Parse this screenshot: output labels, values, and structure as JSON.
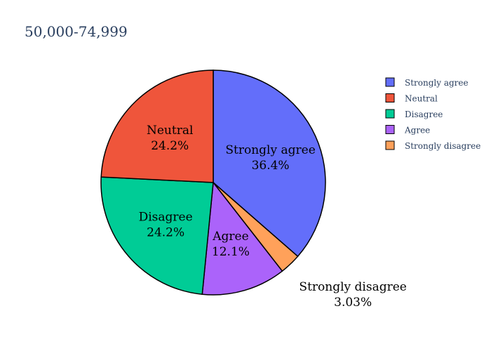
{
  "chart_data": {
    "type": "pie",
    "title": "50,000-74,999",
    "legend_position": "top-right",
    "slices": [
      {
        "label": "Strongly agree",
        "value": 36.4,
        "display": "36.4%",
        "color": "#636efa"
      },
      {
        "label": "Strongly disagree",
        "value": 3.03,
        "display": "3.03%",
        "color": "#ffa15a"
      },
      {
        "label": "Agree",
        "value": 12.1,
        "display": "12.1%",
        "color": "#ab63fa"
      },
      {
        "label": "Disagree",
        "value": 24.2,
        "display": "24.2%",
        "color": "#00cc96"
      },
      {
        "label": "Neutral",
        "value": 24.2,
        "display": "24.2%",
        "color": "#ef553b"
      }
    ],
    "legend_order": [
      "Strongly agree",
      "Neutral",
      "Disagree",
      "Agree",
      "Strongly disagree"
    ]
  }
}
